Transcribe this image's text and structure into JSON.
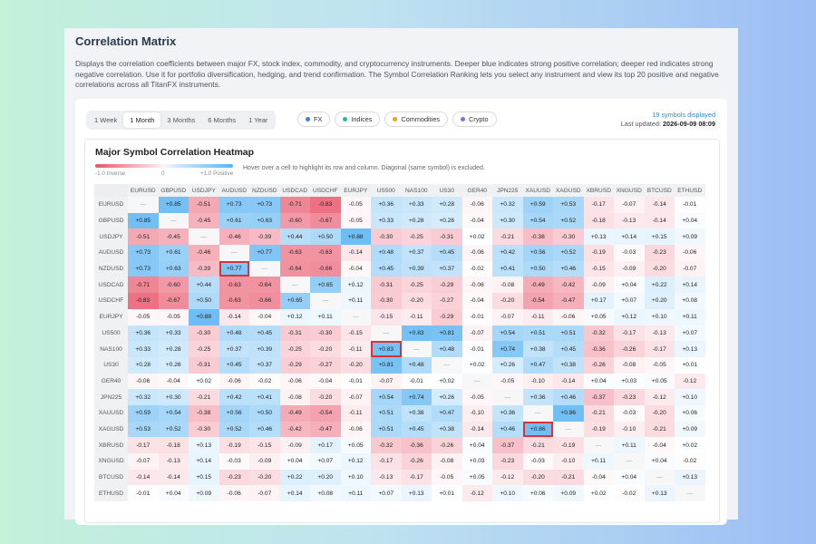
{
  "page": {
    "title": "Correlation Matrix",
    "description": "Displays the correlation coefficients between major FX, stock index, commodity, and cryptocurrency instruments. Deeper blue indicates strong positive correlation; deeper red indicates strong negative correlation. Use it for portfolio diversification, hedging, and trend confirmation. The Symbol Correlation Ranking lets you select any instrument and view its top 20 positive and negative correlations across all TitanFX instruments."
  },
  "controls": {
    "periods": [
      "1 Week",
      "1 Month",
      "3 Months",
      "6 Months",
      "1 Year"
    ],
    "active_period": "1 Month",
    "filters": [
      {
        "label": "FX",
        "color": "#3a7ee0"
      },
      {
        "label": "Indices",
        "color": "#2fb39a"
      },
      {
        "label": "Commodities",
        "color": "#f0a020"
      },
      {
        "label": "Crypto",
        "color": "#8a6ce0"
      }
    ],
    "symbols_count": "19 symbols displayed",
    "last_updated_label": "Last updated:",
    "last_updated": "2026-09-09 08:09"
  },
  "heatmap": {
    "title": "Major Symbol Correlation Heatmap",
    "legend_neg": "-1.0 Inverse",
    "legend_zero": "0",
    "legend_pos": "+1.0 Positive",
    "hint": "Hover over a cell to highlight its row and column. Diagonal (same symbol) is excluded.",
    "colors": {
      "positive": "#5ab4f2",
      "negative": "#e9546a"
    },
    "symbols": [
      "EURUSD",
      "GBPUSD",
      "USDJPY",
      "AUDUSD",
      "NZDUSD",
      "USDCAD",
      "USDCHF",
      "EURJPY",
      "US500",
      "NAS100",
      "US30",
      "GER40",
      "JPN225",
      "XAUUSD",
      "XAGUSD",
      "XBRUSD",
      "XNGUSD",
      "BTCUSD",
      "ETHUSD"
    ],
    "highlighted": [
      [
        4,
        3
      ],
      [
        9,
        8
      ],
      [
        14,
        13
      ]
    ],
    "matrix": [
      [
        null,
        0.85,
        -0.51,
        0.73,
        0.73,
        -0.71,
        -0.83,
        -0.05,
        0.36,
        0.33,
        0.28,
        -0.06,
        0.32,
        0.59,
        0.53,
        -0.17,
        -0.07,
        -0.14,
        -0.01
      ],
      [
        0.85,
        null,
        -0.45,
        0.61,
        0.63,
        -0.6,
        -0.67,
        -0.05,
        0.33,
        0.28,
        0.26,
        -0.04,
        0.3,
        0.54,
        0.52,
        -0.18,
        -0.13,
        -0.14,
        0.04
      ],
      [
        -0.51,
        -0.45,
        null,
        -0.46,
        -0.39,
        0.44,
        0.5,
        0.88,
        -0.3,
        -0.25,
        -0.31,
        0.02,
        -0.21,
        -0.38,
        -0.3,
        0.13,
        0.14,
        0.15,
        0.09
      ],
      [
        0.73,
        0.61,
        -0.46,
        null,
        0.77,
        -0.63,
        -0.63,
        -0.14,
        0.48,
        0.37,
        0.45,
        -0.06,
        0.42,
        0.56,
        0.52,
        -0.19,
        -0.03,
        -0.23,
        -0.06
      ],
      [
        0.73,
        0.63,
        -0.39,
        0.77,
        null,
        -0.64,
        -0.66,
        -0.04,
        0.45,
        0.39,
        0.37,
        -0.02,
        0.41,
        0.5,
        0.46,
        -0.15,
        -0.09,
        -0.2,
        -0.07
      ],
      [
        -0.71,
        -0.6,
        0.44,
        -0.63,
        -0.64,
        null,
        0.65,
        0.12,
        -0.31,
        -0.25,
        -0.29,
        -0.06,
        -0.08,
        -0.49,
        -0.42,
        -0.09,
        0.04,
        0.22,
        0.14
      ],
      [
        -0.83,
        -0.67,
        0.5,
        -0.63,
        -0.66,
        0.65,
        null,
        0.11,
        -0.3,
        -0.2,
        -0.27,
        -0.04,
        -0.2,
        -0.54,
        -0.47,
        0.17,
        0.07,
        0.2,
        0.08
      ],
      [
        -0.05,
        -0.05,
        0.88,
        -0.14,
        -0.04,
        0.12,
        0.11,
        null,
        -0.15,
        -0.11,
        -0.29,
        -0.01,
        -0.07,
        -0.11,
        -0.06,
        0.05,
        0.12,
        0.1,
        0.11
      ],
      [
        0.36,
        0.33,
        -0.3,
        0.48,
        0.45,
        -0.31,
        -0.3,
        -0.15,
        null,
        0.83,
        0.81,
        -0.07,
        0.54,
        0.51,
        0.51,
        -0.32,
        -0.17,
        -0.13,
        0.07
      ],
      [
        0.33,
        0.28,
        -0.25,
        0.37,
        0.39,
        -0.25,
        -0.2,
        -0.11,
        0.83,
        null,
        0.48,
        -0.01,
        0.74,
        0.38,
        0.45,
        -0.36,
        -0.26,
        -0.17,
        0.13
      ],
      [
        0.28,
        0.26,
        -0.31,
        0.45,
        0.37,
        -0.29,
        -0.27,
        -0.2,
        0.81,
        0.48,
        null,
        0.02,
        0.26,
        0.47,
        0.38,
        -0.26,
        -0.08,
        -0.05,
        0.01
      ],
      [
        -0.06,
        -0.04,
        0.02,
        -0.06,
        -0.02,
        -0.06,
        -0.04,
        -0.01,
        -0.07,
        -0.01,
        0.02,
        null,
        -0.05,
        -0.1,
        -0.14,
        0.04,
        0.03,
        0.05,
        -0.12
      ],
      [
        0.32,
        0.3,
        -0.21,
        0.42,
        0.41,
        -0.08,
        -0.2,
        -0.07,
        0.54,
        0.74,
        0.26,
        -0.05,
        null,
        0.36,
        0.46,
        -0.37,
        -0.23,
        -0.12,
        0.1
      ],
      [
        0.59,
        0.54,
        -0.38,
        0.56,
        0.5,
        -0.49,
        -0.54,
        -0.11,
        0.51,
        0.38,
        0.47,
        -0.1,
        0.36,
        null,
        0.86,
        -0.21,
        -0.03,
        -0.2,
        0.06
      ],
      [
        0.53,
        0.52,
        -0.3,
        0.52,
        0.46,
        -0.42,
        -0.47,
        -0.06,
        0.51,
        0.45,
        0.38,
        -0.14,
        0.46,
        0.86,
        null,
        -0.19,
        -0.1,
        -0.21,
        0.09
      ],
      [
        -0.17,
        -0.18,
        0.13,
        -0.19,
        -0.15,
        -0.09,
        0.17,
        0.05,
        -0.32,
        -0.36,
        -0.26,
        0.04,
        -0.37,
        -0.21,
        -0.19,
        null,
        0.11,
        -0.04,
        0.02
      ],
      [
        -0.07,
        -0.13,
        0.14,
        -0.03,
        -0.09,
        0.04,
        0.07,
        0.12,
        -0.17,
        -0.26,
        -0.08,
        0.03,
        -0.23,
        -0.03,
        -0.1,
        0.11,
        null,
        0.04,
        -0.02
      ],
      [
        -0.14,
        -0.14,
        0.15,
        -0.23,
        -0.2,
        0.22,
        0.2,
        0.1,
        -0.13,
        -0.17,
        -0.05,
        0.05,
        -0.12,
        -0.2,
        -0.21,
        -0.04,
        0.04,
        null,
        0.13
      ],
      [
        -0.01,
        0.04,
        0.09,
        -0.06,
        -0.07,
        0.14,
        0.08,
        0.11,
        0.07,
        0.13,
        0.01,
        -0.12,
        0.1,
        0.06,
        0.09,
        0.02,
        -0.02,
        0.13,
        null
      ]
    ],
    "diagonal_label": "—"
  }
}
